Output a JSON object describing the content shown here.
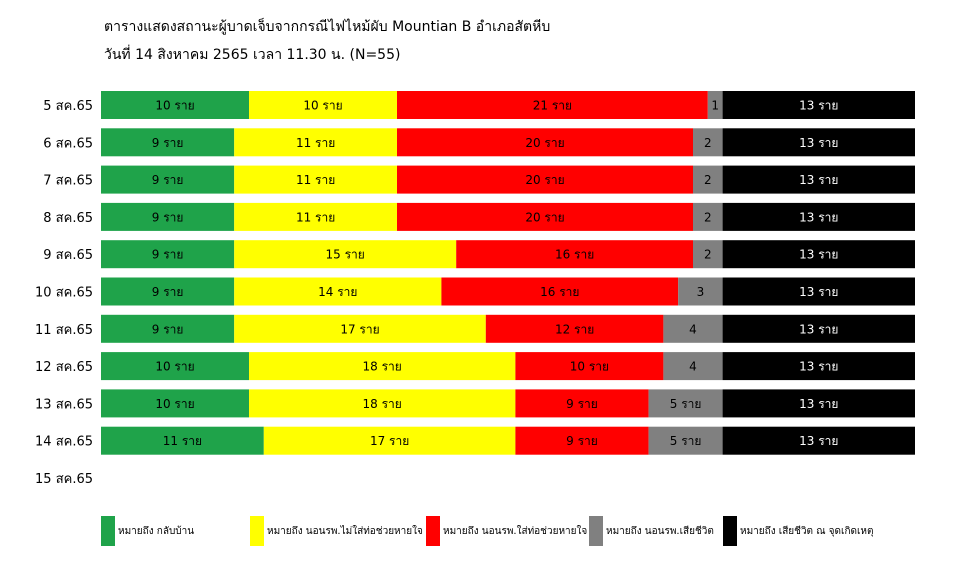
{
  "chart_data": {
    "type": "bar",
    "stacked": true,
    "orientation": "horizontal",
    "title": "ตารางแสดงสถานะผู้บาดเจ็บจากกรณีไฟไหม้ผับ  Mountian B  อำเภอสัตหีบ",
    "subtitle": "วันที่ 14 สิงหาคม 2565  เวลา 11.30 น. (N=55)",
    "categories": [
      "5 สค.65",
      "6 สค.65",
      "7 สค.65",
      "8 สค.65",
      "9 สค.65",
      "10 สค.65",
      "11 สค.65",
      "12 สค.65",
      "13 สค.65",
      "14 สค.65",
      "15 สค.65"
    ],
    "total": 55,
    "series": [
      {
        "name": "หมายถึง  กลับบ้าน",
        "color": "#1fa34a",
        "values": [
          10,
          9,
          9,
          9,
          9,
          9,
          9,
          10,
          10,
          11,
          null
        ],
        "labels": [
          "10 ราย",
          "9 ราย",
          "9 ราย",
          "9 ราย",
          "9 ราย",
          "9 ราย",
          "9 ราย",
          "10 ราย",
          "10 ราย",
          "11 ราย",
          ""
        ]
      },
      {
        "name": "หมายถึง  นอนรพ.ไม่ใส่ท่อช่วยหายใจ",
        "color": "#ffff00",
        "values": [
          10,
          11,
          11,
          11,
          15,
          14,
          17,
          18,
          18,
          17,
          null
        ],
        "labels": [
          "10 ราย",
          "11 ราย",
          "11 ราย",
          "11 ราย",
          "15 ราย",
          "14 ราย",
          "17 ราย",
          "18 ราย",
          "18 ราย",
          "17 ราย",
          ""
        ]
      },
      {
        "name": "หมายถึง  นอนรพ.ใส่ท่อช่วยหายใจ",
        "color": "#ff0000",
        "values": [
          21,
          20,
          20,
          20,
          16,
          16,
          12,
          10,
          9,
          9,
          null
        ],
        "labels": [
          "21 ราย",
          "20 ราย",
          "20 ราย",
          "20 ราย",
          "16 ราย",
          "16 ราย",
          "12 ราย",
          "10 ราย",
          "9 ราย",
          "9 ราย",
          ""
        ]
      },
      {
        "name": "หมายถึง  นอนรพ.เสียชีวิต",
        "color": "#808080",
        "values": [
          1,
          2,
          2,
          2,
          2,
          3,
          4,
          4,
          5,
          5,
          null
        ],
        "labels": [
          "1",
          "2",
          "2",
          "2",
          "2",
          "3",
          "4",
          "4",
          "5 ราย",
          "5 ราย",
          ""
        ]
      },
      {
        "name": "หมายถึง  เสียชีวิต ณ จุดเกิดเหตุ",
        "color": "#000000",
        "values": [
          13,
          13,
          13,
          13,
          13,
          13,
          13,
          13,
          13,
          13,
          null
        ],
        "labels": [
          "13 ราย",
          "13 ราย",
          "13 ราย",
          "13 ราย",
          "13 ราย",
          "13 ราย",
          "13 ราย",
          "13 ราย",
          "13 ราย",
          "13 ราย",
          ""
        ]
      }
    ]
  }
}
